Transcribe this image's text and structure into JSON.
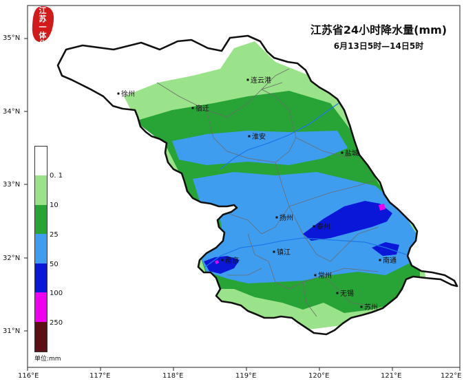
{
  "map": {
    "title": "江苏省24小时降水量(mm)",
    "subtitle": "6月13日5时—14日5时",
    "logo_text": [
      "江",
      "苏",
      "一",
      "体",
      "化"
    ],
    "colors": {
      "c0": "#ffffff",
      "c01": "#9be38a",
      "c10": "#28a336",
      "c25": "#3f9df0",
      "c50": "#0a17d8",
      "c100": "#f000f0",
      "c250": "#5c0f14",
      "boundary": "#111111",
      "river": "#1e78e6"
    },
    "legend": {
      "labels": [
        "0. 1",
        "10",
        "25",
        "50",
        "100",
        "250"
      ],
      "unit": "单位:mm"
    },
    "axes": {
      "x_labels": [
        "116°E",
        "117°E",
        "118°E",
        "119°E",
        "120°E",
        "121°E",
        "122°E"
      ],
      "y_labels": [
        "35°N",
        "34°N",
        "33°N",
        "32°N",
        "31°N"
      ]
    },
    "cities": [
      {
        "id": "xuzhou",
        "name": "徐州"
      },
      {
        "id": "lianyungang",
        "name": "连云港"
      },
      {
        "id": "suqian",
        "name": "宿迁"
      },
      {
        "id": "huaian",
        "name": "淮安"
      },
      {
        "id": "yancheng",
        "name": "盐城"
      },
      {
        "id": "yangzhou",
        "name": "扬州"
      },
      {
        "id": "taizhou",
        "name": "泰州"
      },
      {
        "id": "zhenjiang",
        "name": "镇江"
      },
      {
        "id": "nanjing",
        "name": "南京"
      },
      {
        "id": "nantong",
        "name": "南通"
      },
      {
        "id": "changzhou",
        "name": "常州"
      },
      {
        "id": "wuxi",
        "name": "无锡"
      },
      {
        "id": "suzhou",
        "name": "苏州"
      }
    ]
  }
}
